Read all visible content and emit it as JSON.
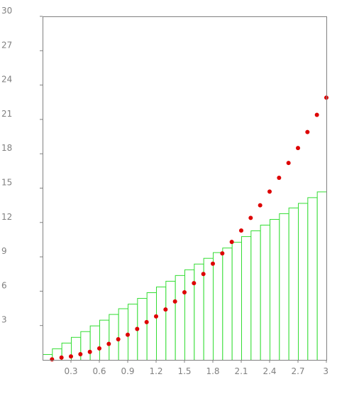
{
  "chart_data": {
    "type": "bar",
    "title": "",
    "xlabel": "",
    "ylabel": "",
    "xlim": [
      0,
      3
    ],
    "ylim": [
      0,
      30
    ],
    "x_ticks": [
      "0.3",
      "0.6",
      "0.9",
      "1.2",
      "1.5",
      "1.8",
      "2.1",
      "2.4",
      "2.7",
      "3"
    ],
    "y_ticks": [
      "3",
      "6",
      "9",
      "12",
      "15",
      "18",
      "21",
      "24",
      "27",
      "30"
    ],
    "grid": false,
    "legend": "none",
    "bars": {
      "bin_width": 0.1,
      "x_start": [
        0.0,
        0.1,
        0.2,
        0.3,
        0.4,
        0.5,
        0.6,
        0.7,
        0.8,
        0.9,
        1.0,
        1.1,
        1.2,
        1.3,
        1.4,
        1.5,
        1.6,
        1.7,
        1.8,
        1.9,
        2.0,
        2.1,
        2.2,
        2.3,
        2.4,
        2.5,
        2.6,
        2.7,
        2.8,
        2.9
      ],
      "values": [
        0.5,
        1.0,
        1.5,
        2.0,
        2.5,
        3.0,
        3.5,
        4.0,
        4.5,
        4.9,
        5.4,
        5.9,
        6.4,
        6.9,
        7.4,
        7.9,
        8.4,
        8.9,
        9.4,
        9.8,
        10.3,
        10.8,
        11.3,
        11.8,
        12.3,
        12.8,
        13.3,
        13.7,
        14.2,
        14.7
      ],
      "edge_color": "#33dd33",
      "fill_color": "#ffffff"
    },
    "points": {
      "x": [
        0.1,
        0.2,
        0.3,
        0.4,
        0.5,
        0.6,
        0.7,
        0.8,
        0.9,
        1.0,
        1.1,
        1.2,
        1.3,
        1.4,
        1.5,
        1.6,
        1.7,
        1.8,
        1.9,
        2.0,
        2.1,
        2.2,
        2.3,
        2.4,
        2.5,
        2.6,
        2.7,
        2.8,
        2.9,
        3.0
      ],
      "y": [
        0.05,
        0.2,
        0.3,
        0.5,
        0.7,
        1.0,
        1.4,
        1.8,
        2.2,
        2.7,
        3.3,
        3.8,
        4.4,
        5.1,
        5.9,
        6.7,
        7.5,
        8.4,
        9.3,
        10.3,
        11.3,
        12.4,
        13.5,
        14.7,
        15.9,
        17.2,
        18.5,
        19.9,
        21.4,
        22.9
      ],
      "color": "#dd0000"
    },
    "axis_color": "#808080"
  }
}
